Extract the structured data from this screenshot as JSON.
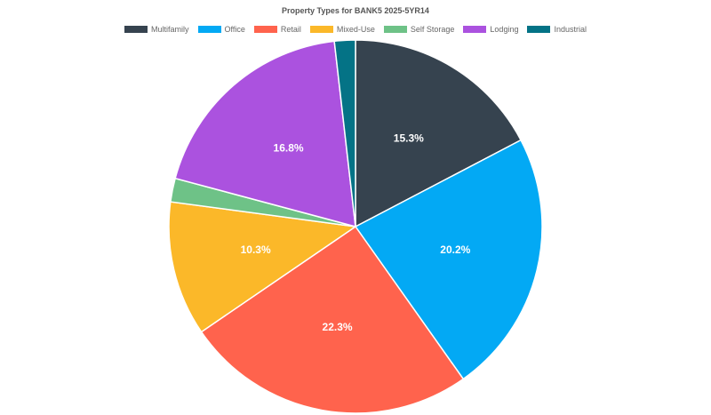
{
  "chart_data": {
    "type": "pie",
    "title": "Property Types for BANK5 2025-5YR14",
    "legend_position": "top-center",
    "slices": [
      {
        "name": "Multifamily",
        "value": 15.3,
        "color": "#36434f",
        "label": "15.3%"
      },
      {
        "name": "Office",
        "value": 20.2,
        "color": "#03a9f4",
        "label": "20.2%"
      },
      {
        "name": "Retail",
        "value": 22.3,
        "color": "#ff634d",
        "label": "22.3%"
      },
      {
        "name": "Mixed-Use",
        "value": 10.3,
        "color": "#fbb829",
        "label": "10.3%"
      },
      {
        "name": "Self Storage",
        "value": 1.8,
        "color": "#6ec287",
        "label": ""
      },
      {
        "name": "Lodging",
        "value": 16.8,
        "color": "#ab52df",
        "label": "16.8%"
      },
      {
        "name": "Industrial",
        "value": 1.6,
        "color": "#047386",
        "label": ""
      }
    ]
  }
}
